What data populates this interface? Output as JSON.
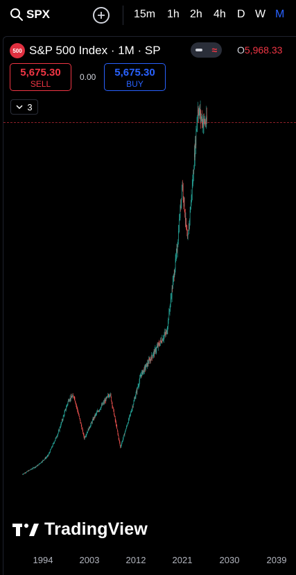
{
  "toolbar": {
    "symbol": "SPX",
    "timeframes": [
      "15m",
      "1h",
      "2h",
      "4h",
      "D",
      "W",
      "M"
    ],
    "active_timeframe": "M"
  },
  "legend": {
    "badge": "500",
    "title": "S&P 500 Index · 1M · SP",
    "ohlc_label": "O",
    "ohlc_value": "5,968.33",
    "collapse_count": "3"
  },
  "trade": {
    "sell_price": "5,675.30",
    "sell_label": "SELL",
    "spread": "0.00",
    "buy_price": "5,675.30",
    "buy_label": "BUY"
  },
  "watermark": "TradingView",
  "colors": {
    "up": "#26a69a",
    "down": "#ef5350",
    "accent": "#2962ff"
  },
  "chart_data": {
    "type": "candlestick",
    "x_ticks": [
      "1994",
      "2003",
      "2012",
      "2021",
      "2030",
      "2039"
    ],
    "approx_close_by_year": [
      {
        "year": 1990,
        "close": 330
      },
      {
        "year": 1993,
        "close": 466
      },
      {
        "year": 1995,
        "close": 615
      },
      {
        "year": 1997,
        "close": 970
      },
      {
        "year": 1999,
        "close": 1469
      },
      {
        "year": 2000,
        "close": 1520
      },
      {
        "year": 2002,
        "close": 880
      },
      {
        "year": 2004,
        "close": 1210
      },
      {
        "year": 2007,
        "close": 1560
      },
      {
        "year": 2009,
        "close": 740
      },
      {
        "year": 2011,
        "close": 1260
      },
      {
        "year": 2013,
        "close": 1840
      },
      {
        "year": 2016,
        "close": 2240
      },
      {
        "year": 2018,
        "close": 2500
      },
      {
        "year": 2020,
        "close": 3750
      },
      {
        "year": 2021,
        "close": 4760
      },
      {
        "year": 2022,
        "close": 3840
      },
      {
        "year": 2023,
        "close": 4770
      },
      {
        "year": 2024,
        "close": 5880
      },
      {
        "year": 2025,
        "close": 5675
      }
    ]
  }
}
